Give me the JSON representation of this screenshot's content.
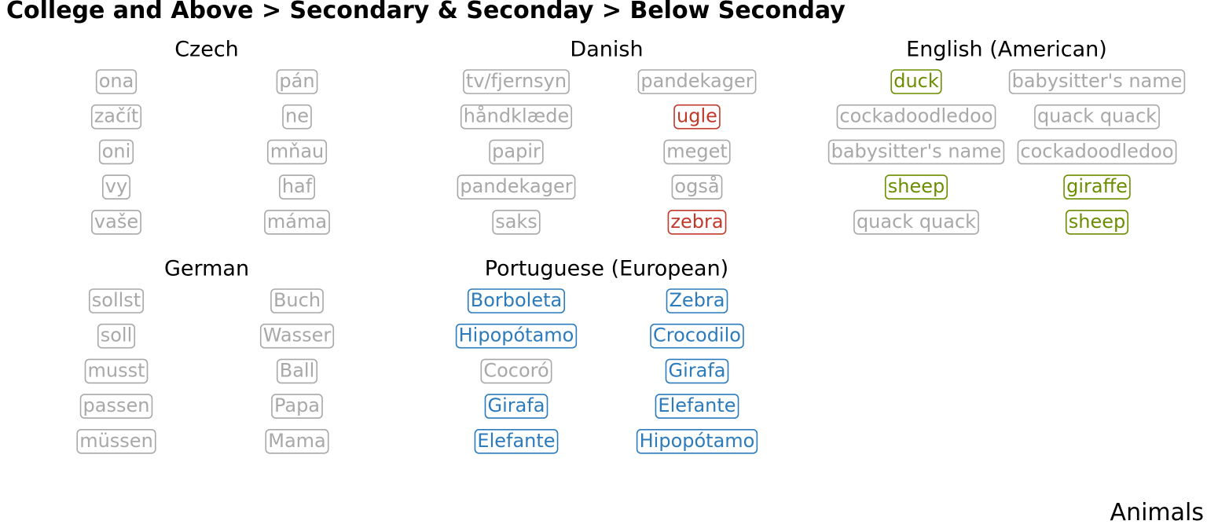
{
  "chart_data": {
    "type": "table",
    "title": "College and Above > Secondary & Seconday > Below Seconday",
    "caption": "Animals",
    "colors": {
      "grey": "#a8a8a8",
      "red": "#c0392b",
      "green": "#6b8e00",
      "blue": "#2b7bbd"
    },
    "panels": [
      {
        "name": "Czech",
        "columns": [
          [
            {
              "text": "ona",
              "color": "grey"
            },
            {
              "text": "začít",
              "color": "grey"
            },
            {
              "text": "oni",
              "color": "grey"
            },
            {
              "text": "vy",
              "color": "grey"
            },
            {
              "text": "vaše",
              "color": "grey"
            }
          ],
          [
            {
              "text": "pán",
              "color": "grey"
            },
            {
              "text": "ne",
              "color": "grey"
            },
            {
              "text": "mňau",
              "color": "grey"
            },
            {
              "text": "haf",
              "color": "grey"
            },
            {
              "text": "máma",
              "color": "grey"
            }
          ]
        ]
      },
      {
        "name": "Danish",
        "columns": [
          [
            {
              "text": "tv/fjernsyn",
              "color": "grey"
            },
            {
              "text": "håndklæde",
              "color": "grey"
            },
            {
              "text": "papir",
              "color": "grey"
            },
            {
              "text": "pandekager",
              "color": "grey"
            },
            {
              "text": "saks",
              "color": "grey"
            }
          ],
          [
            {
              "text": "pandekager",
              "color": "grey"
            },
            {
              "text": "ugle",
              "color": "red"
            },
            {
              "text": "meget",
              "color": "grey"
            },
            {
              "text": "også",
              "color": "grey"
            },
            {
              "text": "zebra",
              "color": "red"
            }
          ]
        ]
      },
      {
        "name": "English (American)",
        "columns": [
          [
            {
              "text": "duck",
              "color": "green"
            },
            {
              "text": "cockadoodledoo",
              "color": "grey"
            },
            {
              "text": "babysitter's name",
              "color": "grey"
            },
            {
              "text": "sheep",
              "color": "green"
            },
            {
              "text": "quack quack",
              "color": "grey"
            }
          ],
          [
            {
              "text": "babysitter's name",
              "color": "grey"
            },
            {
              "text": "quack quack",
              "color": "grey"
            },
            {
              "text": "cockadoodledoo",
              "color": "grey"
            },
            {
              "text": "giraffe",
              "color": "green"
            },
            {
              "text": "sheep",
              "color": "green"
            }
          ]
        ]
      },
      {
        "name": "German",
        "columns": [
          [
            {
              "text": "sollst",
              "color": "grey"
            },
            {
              "text": "soll",
              "color": "grey"
            },
            {
              "text": "musst",
              "color": "grey"
            },
            {
              "text": "passen",
              "color": "grey"
            },
            {
              "text": "müssen",
              "color": "grey"
            }
          ],
          [
            {
              "text": "Buch",
              "color": "grey"
            },
            {
              "text": "Wasser",
              "color": "grey"
            },
            {
              "text": "Ball",
              "color": "grey"
            },
            {
              "text": "Papa",
              "color": "grey"
            },
            {
              "text": "Mama",
              "color": "grey"
            }
          ]
        ]
      },
      {
        "name": "Portuguese (European)",
        "columns": [
          [
            {
              "text": "Borboleta",
              "color": "blue"
            },
            {
              "text": "Hipopótamo",
              "color": "blue"
            },
            {
              "text": "Cocoró",
              "color": "grey"
            },
            {
              "text": "Girafa",
              "color": "blue"
            },
            {
              "text": "Elefante",
              "color": "blue"
            }
          ],
          [
            {
              "text": "Zebra",
              "color": "blue"
            },
            {
              "text": "Crocodilo",
              "color": "blue"
            },
            {
              "text": "Girafa",
              "color": "blue"
            },
            {
              "text": "Elefante",
              "color": "blue"
            },
            {
              "text": "Hipopótamo",
              "color": "blue"
            }
          ]
        ]
      }
    ]
  }
}
